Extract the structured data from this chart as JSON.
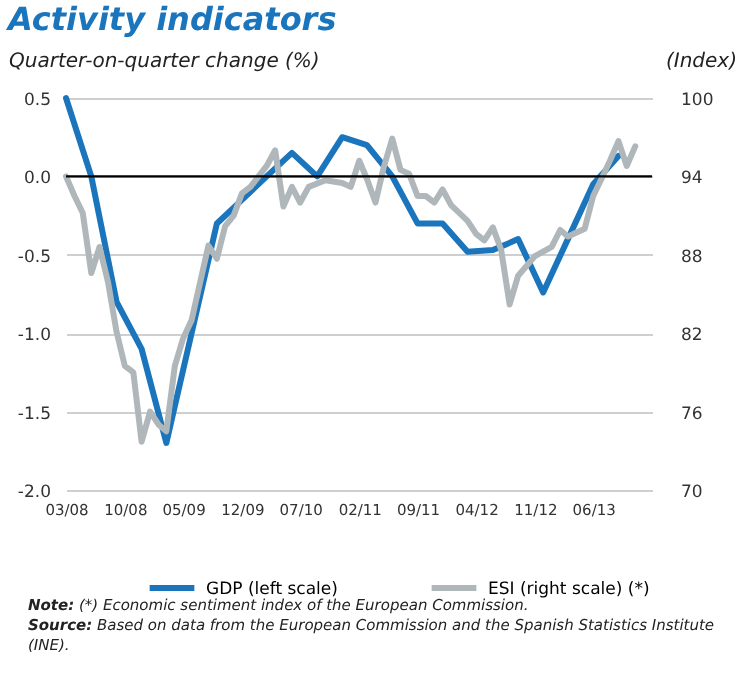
{
  "chart_data": {
    "type": "line",
    "title": "Activity indicators",
    "ylabel": "Quarter-on-quarter change (%)",
    "y2label": "(Index)",
    "xlim": [
      "2008-03",
      "2014-01"
    ],
    "xticks": [
      {
        "value": "2008-03",
        "label": "03/08"
      },
      {
        "value": "2008-10",
        "label": "10/08"
      },
      {
        "value": "2009-05",
        "label": "05/09"
      },
      {
        "value": "2009-12",
        "label": "12/09"
      },
      {
        "value": "2010-07",
        "label": "07/10"
      },
      {
        "value": "2011-02",
        "label": "02/11"
      },
      {
        "value": "2011-09",
        "label": "09/11"
      },
      {
        "value": "2012-04",
        "label": "04/12"
      },
      {
        "value": "2012-11",
        "label": "11/12"
      },
      {
        "value": "2013-06",
        "label": "06/13"
      }
    ],
    "ylim": [
      -2.0,
      0.5
    ],
    "yticks": [
      {
        "value": -2,
        "label": "-2.0"
      },
      {
        "value": -1.5,
        "label": "-1.5"
      },
      {
        "value": -1,
        "label": "-1.0"
      },
      {
        "value": -0.5,
        "label": "-0.5"
      },
      {
        "value": 0,
        "label": "0.0"
      },
      {
        "value": 0.5,
        "label": "0.5"
      }
    ],
    "y2lim": [
      70,
      100
    ],
    "y2ticks": [
      70,
      76,
      82,
      88,
      94,
      100
    ],
    "grid": "y",
    "legend": "bottom",
    "marker": "none",
    "line_style": "solid",
    "ref_lines": [
      {
        "axis": "y",
        "value": 0,
        "color": "#000000"
      }
    ],
    "series": [
      {
        "name": "GDP (left scale)",
        "color": "#1a75bc",
        "x": [
          "2008-03",
          "2008-06",
          "2008-09",
          "2008-12",
          "2009-03",
          "2009-06",
          "2009-09",
          "2009-12",
          "2010-03",
          "2010-06",
          "2010-09",
          "2010-12",
          "2011-03",
          "2011-06",
          "2011-09",
          "2011-12",
          "2012-03",
          "2012-06",
          "2012-09",
          "2012-12",
          "2013-03",
          "2013-06",
          "2013-09"
        ],
        "values": [
          0.5,
          0.0,
          -0.8,
          -1.1,
          -1.7,
          -1.0,
          -0.3,
          -0.15,
          0.0,
          0.15,
          0.0,
          0.25,
          0.2,
          0.0,
          -0.3,
          -0.3,
          -0.48,
          -0.47,
          -0.4,
          -0.74,
          -0.4,
          -0.05,
          0.13
        ]
      },
      {
        "name": "ESI (right scale) (*)",
        "color": "#b0b7bb",
        "axis": "y2",
        "x": [
          "2008-03",
          "2008-04",
          "2008-05",
          "2008-06",
          "2008-07",
          "2008-08",
          "2008-09",
          "2008-10",
          "2008-11",
          "2008-12",
          "2009-01",
          "2009-02",
          "2009-03",
          "2009-04",
          "2009-05",
          "2009-06",
          "2009-08",
          "2009-09",
          "2009-10",
          "2009-11",
          "2009-12",
          "2010-01",
          "2010-03",
          "2010-04",
          "2010-05",
          "2010-06",
          "2010-07",
          "2010-08",
          "2010-10",
          "2010-12",
          "2011-01",
          "2011-02",
          "2011-03",
          "2011-04",
          "2011-05",
          "2011-06",
          "2011-07",
          "2011-08",
          "2011-09",
          "2011-10",
          "2011-11",
          "2011-12",
          "2012-01",
          "2012-03",
          "2012-04",
          "2012-05",
          "2012-06",
          "2012-07",
          "2012-08",
          "2012-09",
          "2012-11",
          "2013-01",
          "2013-02",
          "2013-03",
          "2013-05",
          "2013-06",
          "2013-07",
          "2013-08",
          "2013-09",
          "2013-10",
          "2013-11"
        ],
        "values": [
          94,
          92.5,
          91.2,
          86.6,
          88.6,
          85.9,
          82.1,
          79.5,
          79,
          73.7,
          76,
          75,
          74.5,
          79.5,
          81.6,
          83,
          88.7,
          87.7,
          90.2,
          91,
          92.7,
          93.2,
          94.8,
          96,
          91.7,
          93.2,
          92,
          93.2,
          93.7,
          93.5,
          93.2,
          95.2,
          93.8,
          92,
          94.7,
          96.9,
          94.5,
          94.2,
          92.5,
          92.5,
          92,
          93,
          91.8,
          90.6,
          89.6,
          89.1,
          90.1,
          88.4,
          84.2,
          86.4,
          87.9,
          88.6,
          89.9,
          89.4,
          90,
          92.5,
          93.8,
          95.2,
          96.7,
          94.8,
          96.3
        ]
      }
    ],
    "annotations": [
      "Note: (*) Economic sentiment index of the European Commission.",
      "Source: Based on data from the European Commission and the Spanish Statistics Institute (INE)."
    ]
  }
}
